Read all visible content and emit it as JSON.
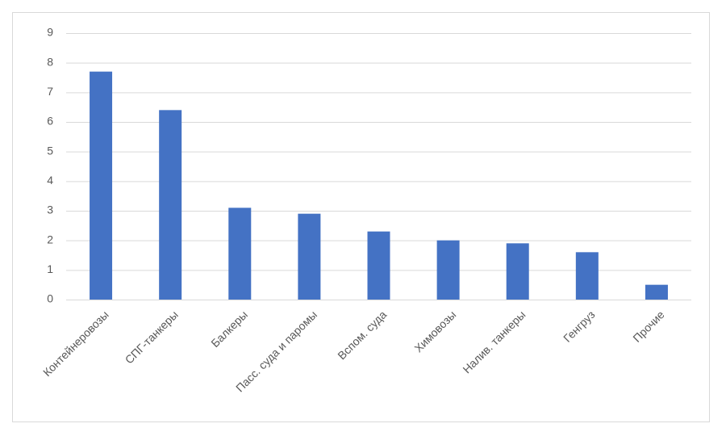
{
  "chart_data": {
    "type": "bar",
    "categories": [
      "Контейнеровозы",
      "СПГ-танкеры",
      "Балкеры",
      "Пасс. суда и паромы",
      "Вспом. суда",
      "Химовозы",
      "Налив. танкеры",
      "Генгруз",
      "Прочие"
    ],
    "values": [
      7.7,
      6.4,
      3.1,
      2.9,
      2.3,
      2.0,
      1.9,
      1.6,
      0.5
    ],
    "color": "#4472c4",
    "ylim": [
      0,
      9
    ],
    "yticks": [
      0,
      1,
      2,
      3,
      4,
      5,
      6,
      7,
      8,
      9
    ],
    "grid": true
  }
}
